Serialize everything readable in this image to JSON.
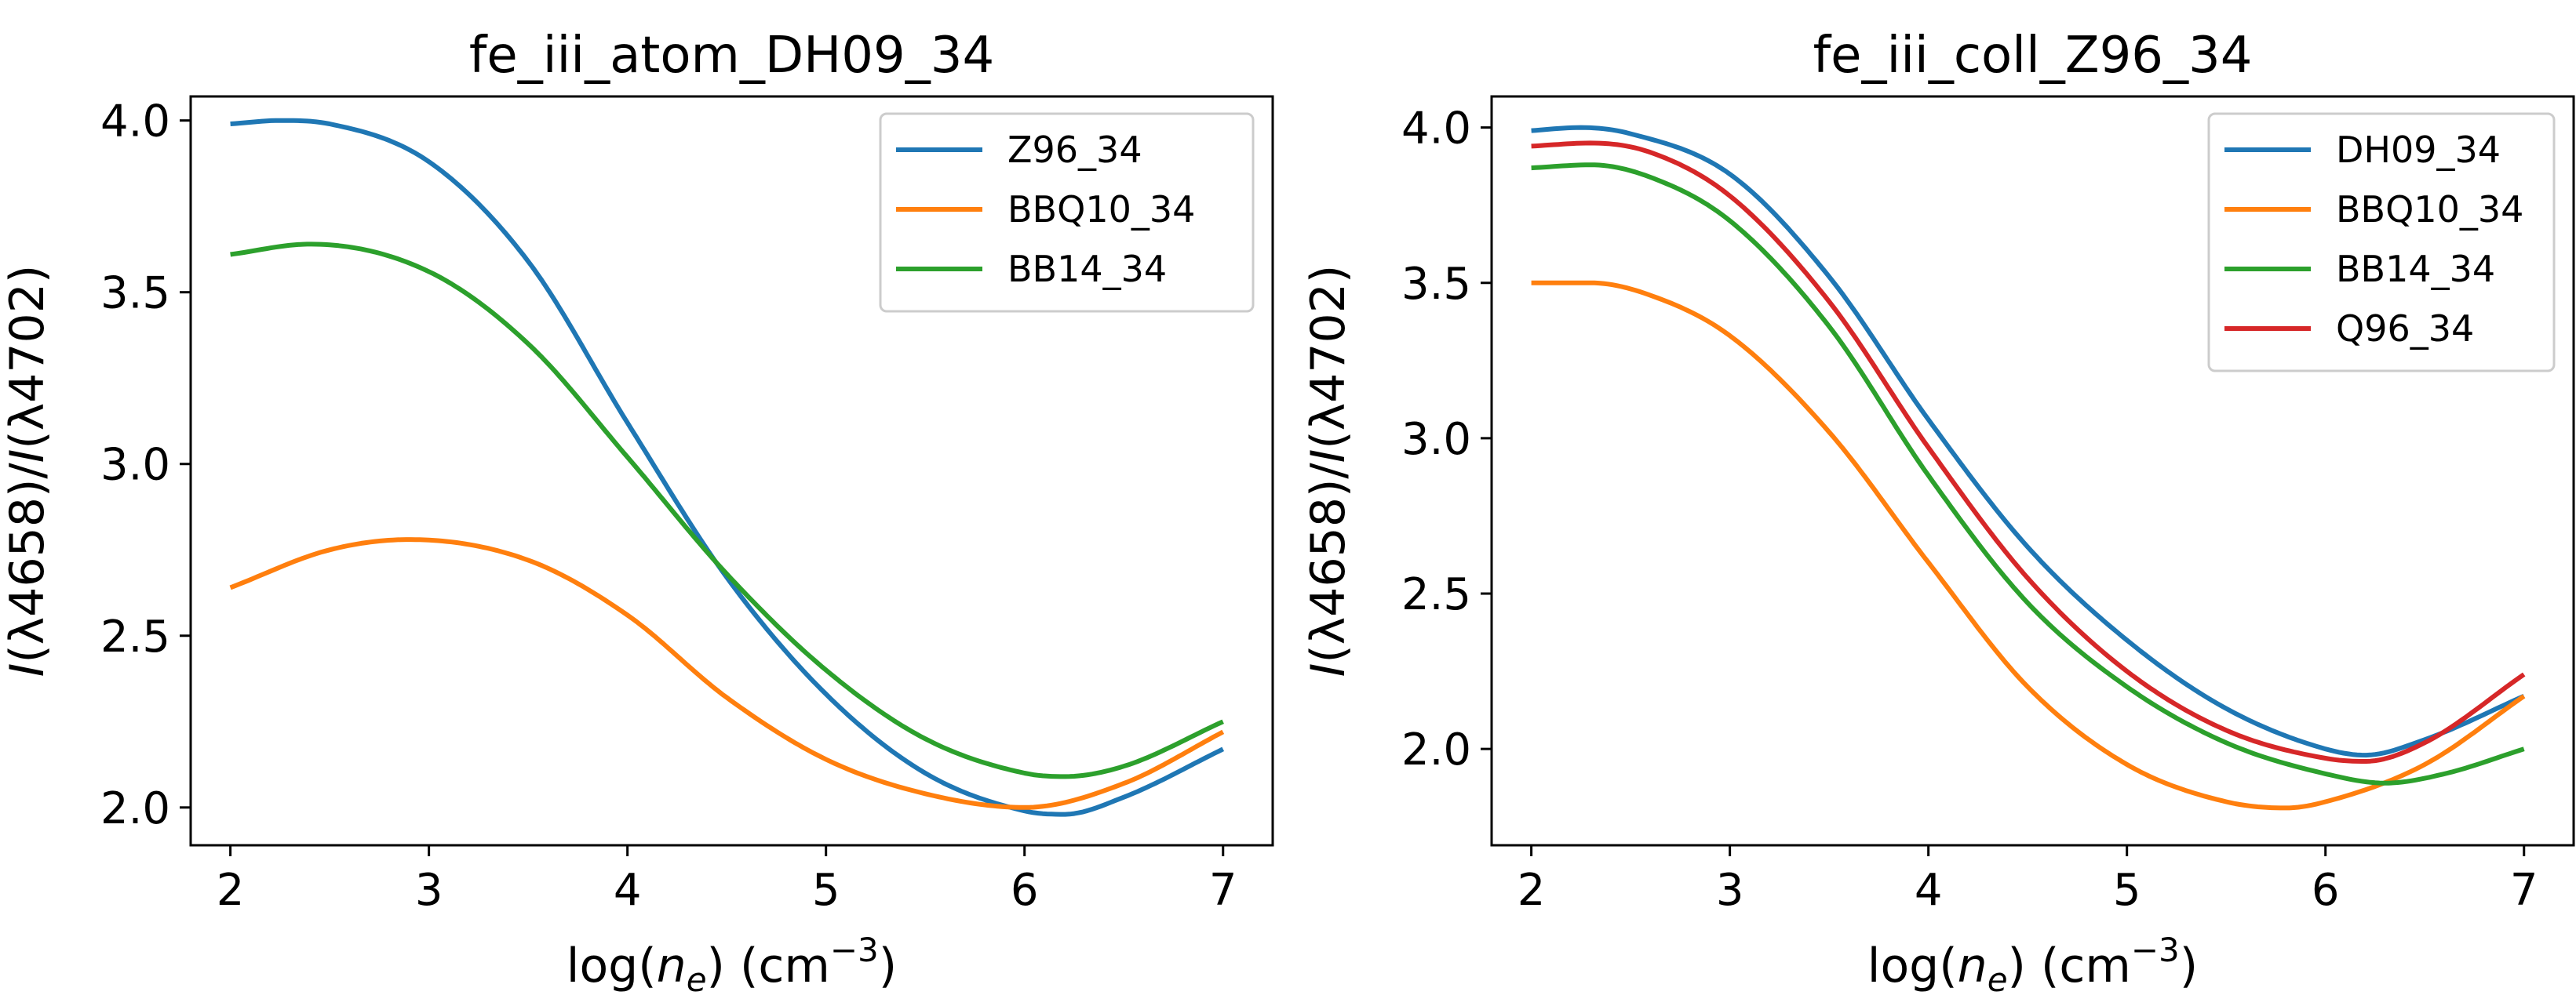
{
  "chart_data": [
    {
      "type": "line",
      "title": "fe_iii_atom_DH09_34",
      "xlabel": "log(n_e) (cm^-3)",
      "ylabel": "I(λ4658)/I(λ4702)",
      "xlim": [
        1.8,
        7.25
      ],
      "ylim": [
        1.89,
        4.07
      ],
      "xticks": [
        2,
        3,
        4,
        5,
        6,
        7
      ],
      "yticks": [
        2.0,
        2.5,
        3.0,
        3.5,
        4.0
      ],
      "grid": false,
      "legend_loc": "upper right",
      "series": [
        {
          "name": "Z96_34",
          "color": "#1f77b4",
          "x": [
            2.0,
            2.25,
            2.5,
            3.0,
            3.5,
            4.0,
            4.5,
            5.0,
            5.5,
            6.0,
            6.2,
            6.5,
            7.0
          ],
          "y": [
            3.99,
            4.0,
            3.99,
            3.88,
            3.59,
            3.12,
            2.67,
            2.33,
            2.1,
            1.99,
            1.98,
            2.03,
            2.17
          ]
        },
        {
          "name": "BBQ10_34",
          "color": "#ff7f0e",
          "x": [
            2.0,
            2.5,
            2.9,
            3.5,
            4.0,
            4.5,
            5.0,
            5.5,
            6.0,
            6.5,
            7.0
          ],
          "y": [
            2.64,
            2.75,
            2.78,
            2.72,
            2.56,
            2.32,
            2.14,
            2.04,
            2.0,
            2.07,
            2.22
          ]
        },
        {
          "name": "BB14_34",
          "color": "#2ca02c",
          "x": [
            2.0,
            2.4,
            3.0,
            3.5,
            4.0,
            4.5,
            5.0,
            5.5,
            6.0,
            6.2,
            6.5,
            7.0
          ],
          "y": [
            3.61,
            3.64,
            3.56,
            3.35,
            3.02,
            2.68,
            2.4,
            2.2,
            2.1,
            2.09,
            2.12,
            2.25
          ]
        }
      ]
    },
    {
      "type": "line",
      "title": "fe_iii_coll_Z96_34",
      "xlabel": "log(n_e) (cm^-3)",
      "ylabel": "I(λ4658)/I(λ4702)",
      "xlim": [
        1.8,
        7.25
      ],
      "ylim": [
        1.69,
        4.1
      ],
      "xticks": [
        2,
        3,
        4,
        5,
        6,
        7
      ],
      "yticks": [
        2.0,
        2.5,
        3.0,
        3.5,
        4.0
      ],
      "grid": false,
      "legend_loc": "upper right",
      "series": [
        {
          "name": "DH09_34",
          "color": "#1f77b4",
          "x": [
            2.0,
            2.25,
            2.5,
            3.0,
            3.5,
            4.0,
            4.5,
            5.0,
            5.5,
            6.0,
            6.2,
            6.5,
            7.0
          ],
          "y": [
            3.99,
            4.0,
            3.98,
            3.85,
            3.52,
            3.06,
            2.65,
            2.35,
            2.13,
            2.0,
            1.98,
            2.03,
            2.17
          ]
        },
        {
          "name": "BBQ10_34",
          "color": "#ff7f0e",
          "x": [
            2.0,
            2.3,
            2.6,
            3.0,
            3.5,
            4.0,
            4.5,
            5.0,
            5.5,
            5.8,
            6.0,
            6.5,
            7.0
          ],
          "y": [
            3.5,
            3.5,
            3.46,
            3.33,
            3.02,
            2.6,
            2.2,
            1.95,
            1.83,
            1.81,
            1.83,
            1.95,
            2.17
          ]
        },
        {
          "name": "BB14_34",
          "color": "#2ca02c",
          "x": [
            2.0,
            2.3,
            2.6,
            3.0,
            3.5,
            4.0,
            4.5,
            5.0,
            5.5,
            6.0,
            6.3,
            6.6,
            7.0
          ],
          "y": [
            3.87,
            3.88,
            3.84,
            3.7,
            3.36,
            2.88,
            2.47,
            2.2,
            2.02,
            1.92,
            1.89,
            1.92,
            2.0
          ]
        },
        {
          "name": "Q96_34",
          "color": "#d62728",
          "x": [
            2.0,
            2.3,
            2.6,
            3.0,
            3.5,
            4.0,
            4.5,
            5.0,
            5.5,
            6.0,
            6.2,
            6.5,
            7.0
          ],
          "y": [
            3.94,
            3.95,
            3.92,
            3.78,
            3.44,
            2.97,
            2.55,
            2.25,
            2.06,
            1.97,
            1.96,
            2.02,
            2.24
          ]
        }
      ]
    }
  ]
}
